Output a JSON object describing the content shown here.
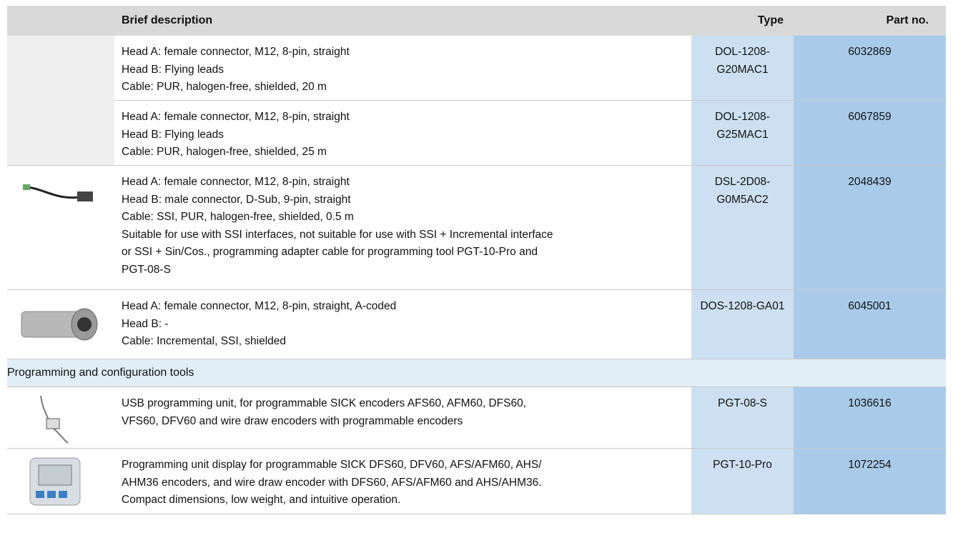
{
  "table": {
    "header": {
      "description": "Brief description",
      "type": "Type",
      "part_no": "Part no."
    },
    "rows": [
      {
        "description": [
          "Head A: female connector, M12, 8-pin, straight",
          "Head B: Flying leads",
          "Cable: PUR, halogen-free, shielded, 20 m"
        ],
        "type": "DOL-1208-G20MAC1",
        "part_no": "6032869"
      },
      {
        "description": [
          "Head A: female connector, M12, 8-pin, straight",
          "Head B: Flying leads",
          "Cable: PUR, halogen-free, shielded, 25 m"
        ],
        "type": "DOL-1208-G25MAC1",
        "part_no": "6067859"
      },
      {
        "description": [
          "Head A: female connector, M12, 8-pin, straight",
          "Head B: male connector, D-Sub, 9-pin, straight",
          "Cable: SSI, PUR, halogen-free, shielded, 0.5 m",
          "Suitable for use with SSI interfaces, not suitable for use with SSI + Incremental interface",
          "or SSI + Sin/Cos., programming adapter cable for programming tool PGT-10-Pro and",
          "PGT-08-S"
        ],
        "type": "DSL-2D08-G0M5AC2",
        "part_no": "2048439"
      },
      {
        "description": [
          "Head A: female connector, M12, 8-pin, straight, A-coded",
          "Head B: -",
          "Cable: Incremental, SSI, shielded"
        ],
        "type": "DOS-1208-GA01",
        "part_no": "6045001"
      },
      {
        "section": "Programming and configuration tools"
      },
      {
        "description": [
          "USB programming unit, for programmable SICK encoders AFS60, AFM60, DFS60,",
          "VFS60, DFV60 and wire draw encoders with programmable encoders"
        ],
        "type": "PGT-08-S",
        "part_no": "1036616"
      },
      {
        "description": [
          "Programming unit display for programmable SICK DFS60, DFV60, AFS/AFM60, AHS/",
          "AHM36 encoders, and wire draw encoder with DFS60, AFS/AFM60 and AHS/AHM36.",
          "Compact dimensions, low weight, and intuitive operation."
        ],
        "type": "PGT-10-Pro",
        "part_no": "1072254"
      }
    ]
  }
}
